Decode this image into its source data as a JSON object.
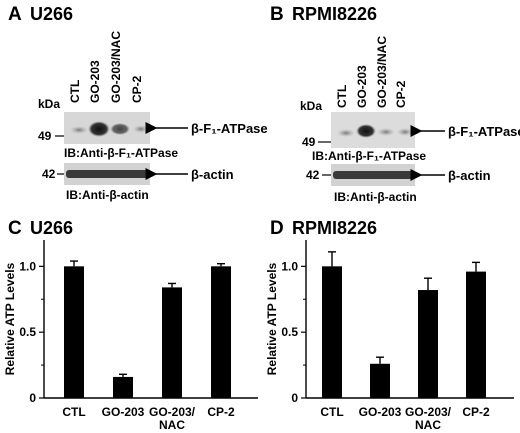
{
  "panel_a": {
    "letter": "A",
    "cell_line": "U266",
    "lanes": [
      "CTL",
      "GO-203",
      "GO-203/NAC",
      "CP-2"
    ],
    "kda_label": "kDa",
    "marker_upper": "49",
    "marker_lower": "42",
    "band_upper": "β-F₁-ATPase",
    "ib_upper": "IB:Anti-β-F₁-ATPase",
    "band_lower": "β-actin",
    "ib_lower": "IB:Anti-β-actin"
  },
  "panel_b": {
    "letter": "B",
    "cell_line": "RPMI8226",
    "lanes": [
      "CTL",
      "GO-203",
      "GO-203/NAC",
      "CP-2"
    ],
    "kda_label": "kDa",
    "marker_upper": "49",
    "marker_lower": "42",
    "band_upper": "β-F₁-ATPase",
    "ib_upper": "IB:Anti-β-F₁-ATPase",
    "band_lower": "β-actin",
    "ib_lower": "IB:Anti-β-actin"
  },
  "chart_data": [
    {
      "type": "bar",
      "panel": "C",
      "title": "U266",
      "categories": [
        "CTL",
        "GO-203",
        "GO-203/\nNAC",
        "CP-2"
      ],
      "values": [
        1.0,
        0.16,
        0.84,
        1.0
      ],
      "errors": [
        0.04,
        0.02,
        0.03,
        0.02
      ],
      "ylabel": "Relative ATP Levels",
      "ylim": [
        0,
        1.2
      ],
      "yticks": [
        "0",
        "0.5",
        "1.0"
      ],
      "bar_color": "#000000"
    },
    {
      "type": "bar",
      "panel": "D",
      "title": "RPMI8226",
      "categories": [
        "CTL",
        "GO-203",
        "GO-203/\nNAC",
        "CP-2"
      ],
      "values": [
        1.0,
        0.26,
        0.82,
        0.96
      ],
      "errors": [
        0.11,
        0.05,
        0.09,
        0.07
      ],
      "ylabel": "Relative ATP Levels",
      "ylim": [
        0,
        1.2
      ],
      "yticks": [
        "0",
        "0.5",
        "1.0"
      ],
      "bar_color": "#000000"
    }
  ]
}
